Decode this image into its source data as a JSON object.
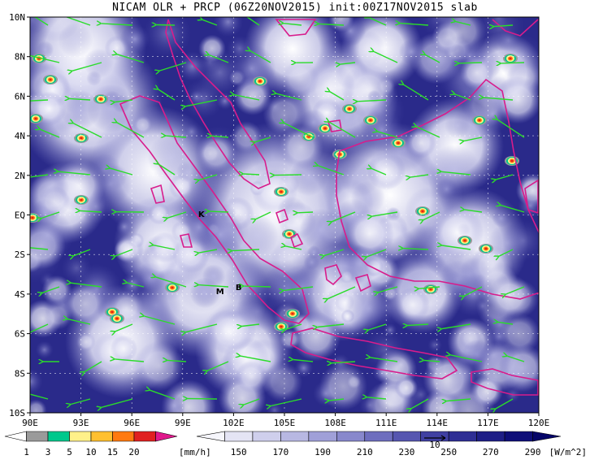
{
  "title": "NICAM OLR + PRCP (06Z20NOV2015) init:00Z17NOV2015 slab",
  "map": {
    "lon_ticks": [
      "90E",
      "93E",
      "96E",
      "99E",
      "102E",
      "105E",
      "108E",
      "111E",
      "114E",
      "117E",
      "120E"
    ],
    "lat_ticks": [
      "10N",
      "8N",
      "6N",
      "4N",
      "2N",
      "EQ",
      "2S",
      "4S",
      "6S",
      "8S",
      "10S"
    ],
    "lon_range": [
      90,
      120
    ],
    "lat_range": [
      -10,
      10
    ],
    "stations": [
      {
        "label": "K",
        "lon": 100.1,
        "lat": -0.1
      },
      {
        "label": "M",
        "lon": 101.2,
        "lat": -4.0
      },
      {
        "label": "B",
        "lon": 102.3,
        "lat": -3.8
      }
    ],
    "vector_reference_label": "10"
  },
  "precip_colorbar": {
    "ticks": [
      "1",
      "3",
      "5",
      "10",
      "15",
      "20"
    ],
    "unit": "[mm/h]",
    "colors": [
      "#ffffff",
      "#9a9a9a",
      "#00c88c",
      "#fff18a",
      "#ffc030",
      "#ff7a10",
      "#e02020",
      "#e0188c"
    ]
  },
  "olr_colorbar": {
    "ticks": [
      "150",
      "170",
      "190",
      "210",
      "230",
      "250",
      "270",
      "290"
    ],
    "unit": "[W/m^2]",
    "colors": [
      "#f6f6fc",
      "#e4e4f4",
      "#cfcfec",
      "#b8b8e2",
      "#a0a0d8",
      "#8888cc",
      "#6e6ebe",
      "#5656b0",
      "#4040a2",
      "#2e2e94",
      "#1e1e86",
      "#0e0e78",
      "#050568"
    ]
  },
  "colors": {
    "background_deep": "#171779",
    "coastline": "#d81c8c",
    "vector": "#2adc2a",
    "grid": "#ffffff"
  }
}
